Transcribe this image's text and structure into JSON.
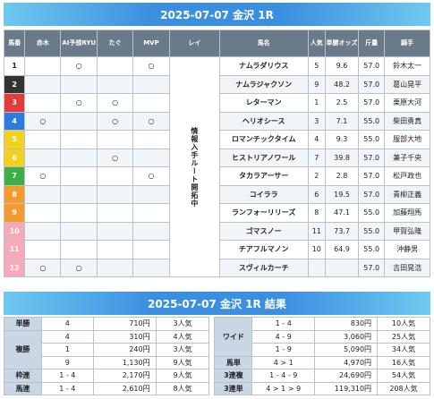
{
  "header": {
    "title": "2025-07-07 金沢 1R"
  },
  "columns": [
    "馬番",
    "赤木",
    "AI予想RYU",
    "たぐ",
    "MVP",
    "レイ",
    "馬名",
    "人気",
    "単勝オッズ",
    "斤量",
    "騎手"
  ],
  "rei_text": "情報入手ルート開拓中",
  "entries": [
    {
      "num": "1",
      "color": "#ffffff",
      "text_color": "#222222",
      "akagi": "",
      "ai": "○",
      "tagu": "",
      "mvp": "○",
      "name": "ナムラダリウス",
      "pop": "5",
      "odds": "9.6",
      "weight": "57.0",
      "jockey": "鈴木太一"
    },
    {
      "num": "2",
      "color": "#333333",
      "text_color": "#ffffff",
      "akagi": "",
      "ai": "",
      "tagu": "",
      "mvp": "",
      "name": "ナムラジャクソン",
      "pop": "9",
      "odds": "48.2",
      "weight": "57.0",
      "jockey": "葛山晃平"
    },
    {
      "num": "3",
      "color": "#e63a3a",
      "text_color": "#ffffff",
      "akagi": "",
      "ai": "○",
      "tagu": "○",
      "mvp": "",
      "name": "レターマン",
      "pop": "1",
      "odds": "2.5",
      "weight": "57.0",
      "jockey": "栗原大河"
    },
    {
      "num": "4",
      "color": "#2e7be0",
      "text_color": "#ffffff",
      "akagi": "○",
      "ai": "",
      "tagu": "○",
      "mvp": "○",
      "name": "ヘリオシース",
      "pop": "3",
      "odds": "7.1",
      "weight": "55.0",
      "jockey": "柴田勇真"
    },
    {
      "num": "5",
      "color": "#f2d21c",
      "text_color": "#ffffff",
      "akagi": "",
      "ai": "",
      "tagu": "",
      "mvp": "",
      "name": "ロマンチックタイム",
      "pop": "4",
      "odds": "9.3",
      "weight": "55.0",
      "jockey": "服部大地"
    },
    {
      "num": "6",
      "color": "#f2d21c",
      "text_color": "#ffffff",
      "akagi": "",
      "ai": "",
      "tagu": "○",
      "mvp": "",
      "name": "ヒストリアノワール",
      "pop": "7",
      "odds": "39.8",
      "weight": "57.0",
      "jockey": "兼子千央"
    },
    {
      "num": "7",
      "color": "#3cb043",
      "text_color": "#ffffff",
      "akagi": "○",
      "ai": "",
      "tagu": "",
      "mvp": "○",
      "name": "タカラアーサー",
      "pop": "2",
      "odds": "2.8",
      "weight": "57.0",
      "jockey": "松戸政也"
    },
    {
      "num": "8",
      "color": "#f59a2b",
      "text_color": "#ffffff",
      "akagi": "",
      "ai": "",
      "tagu": "",
      "mvp": "",
      "name": "コイララ",
      "pop": "6",
      "odds": "19.5",
      "weight": "57.0",
      "jockey": "青柳正義"
    },
    {
      "num": "9",
      "color": "#f59a2b",
      "text_color": "#ffffff",
      "akagi": "",
      "ai": "",
      "tagu": "",
      "mvp": "",
      "name": "ランフォーリリーズ",
      "pop": "8",
      "odds": "47.1",
      "weight": "55.0",
      "jockey": "加藤翔馬"
    },
    {
      "num": "10",
      "color": "#f8a8b8",
      "text_color": "#ffffff",
      "akagi": "",
      "ai": "",
      "tagu": "",
      "mvp": "",
      "name": "ゴマスノー",
      "pop": "11",
      "odds": "73.7",
      "weight": "55.0",
      "jockey": "甲賀弘隆"
    },
    {
      "num": "11",
      "color": "#f8a8b8",
      "text_color": "#ffffff",
      "akagi": "",
      "ai": "",
      "tagu": "",
      "mvp": "",
      "name": "チアフルマノン",
      "pop": "10",
      "odds": "64.9",
      "weight": "55.0",
      "jockey": "沖静男"
    },
    {
      "num": "12",
      "color": "#f8a8b8",
      "text_color": "#ffffff",
      "akagi": "○",
      "ai": "○",
      "tagu": "",
      "mvp": "",
      "name": "スヴィルカーチ",
      "pop": "",
      "odds": "",
      "weight": "57.0",
      "jockey": "吉田晃浩"
    }
  ],
  "results_header": {
    "title": "2025-07-07 金沢 1R 結果"
  },
  "results": [
    {
      "l_label": "単勝",
      "l_combo": "4",
      "l_pay": "710円",
      "l_pop": "3人気",
      "r_label": "",
      "r_combo": "1 - 4",
      "r_pay": "830円",
      "r_pop": "10人気"
    },
    {
      "l_label": "",
      "l_combo": "4",
      "l_pay": "310円",
      "l_pop": "4人気",
      "r_label": "ワイド",
      "r_combo": "4 - 9",
      "r_pay": "3,060円",
      "r_pop": "25人気"
    },
    {
      "l_label": "複勝",
      "l_combo": "1",
      "l_pay": "240円",
      "l_pop": "3人気",
      "r_label": "",
      "r_combo": "1 - 9",
      "r_pay": "5,090円",
      "r_pop": "34人気"
    },
    {
      "l_label": "",
      "l_combo": "9",
      "l_pay": "1,130円",
      "l_pop": "9人気",
      "r_label": "馬単",
      "r_combo": "4 > 1",
      "r_pay": "4,970円",
      "r_pop": "16人気"
    },
    {
      "l_label": "枠連",
      "l_combo": "1 - 4",
      "l_pay": "2,170円",
      "l_pop": "9人気",
      "r_label": "3連複",
      "r_combo": "1 - 4 - 9",
      "r_pay": "24,690円",
      "r_pop": "54人気"
    },
    {
      "l_label": "馬連",
      "l_combo": "1 - 4",
      "l_pay": "2,610円",
      "l_pop": "8人気",
      "r_label": "3連単",
      "r_combo": "4 > 1 > 9",
      "r_pay": "119,310円",
      "r_pop": "208人気"
    }
  ]
}
